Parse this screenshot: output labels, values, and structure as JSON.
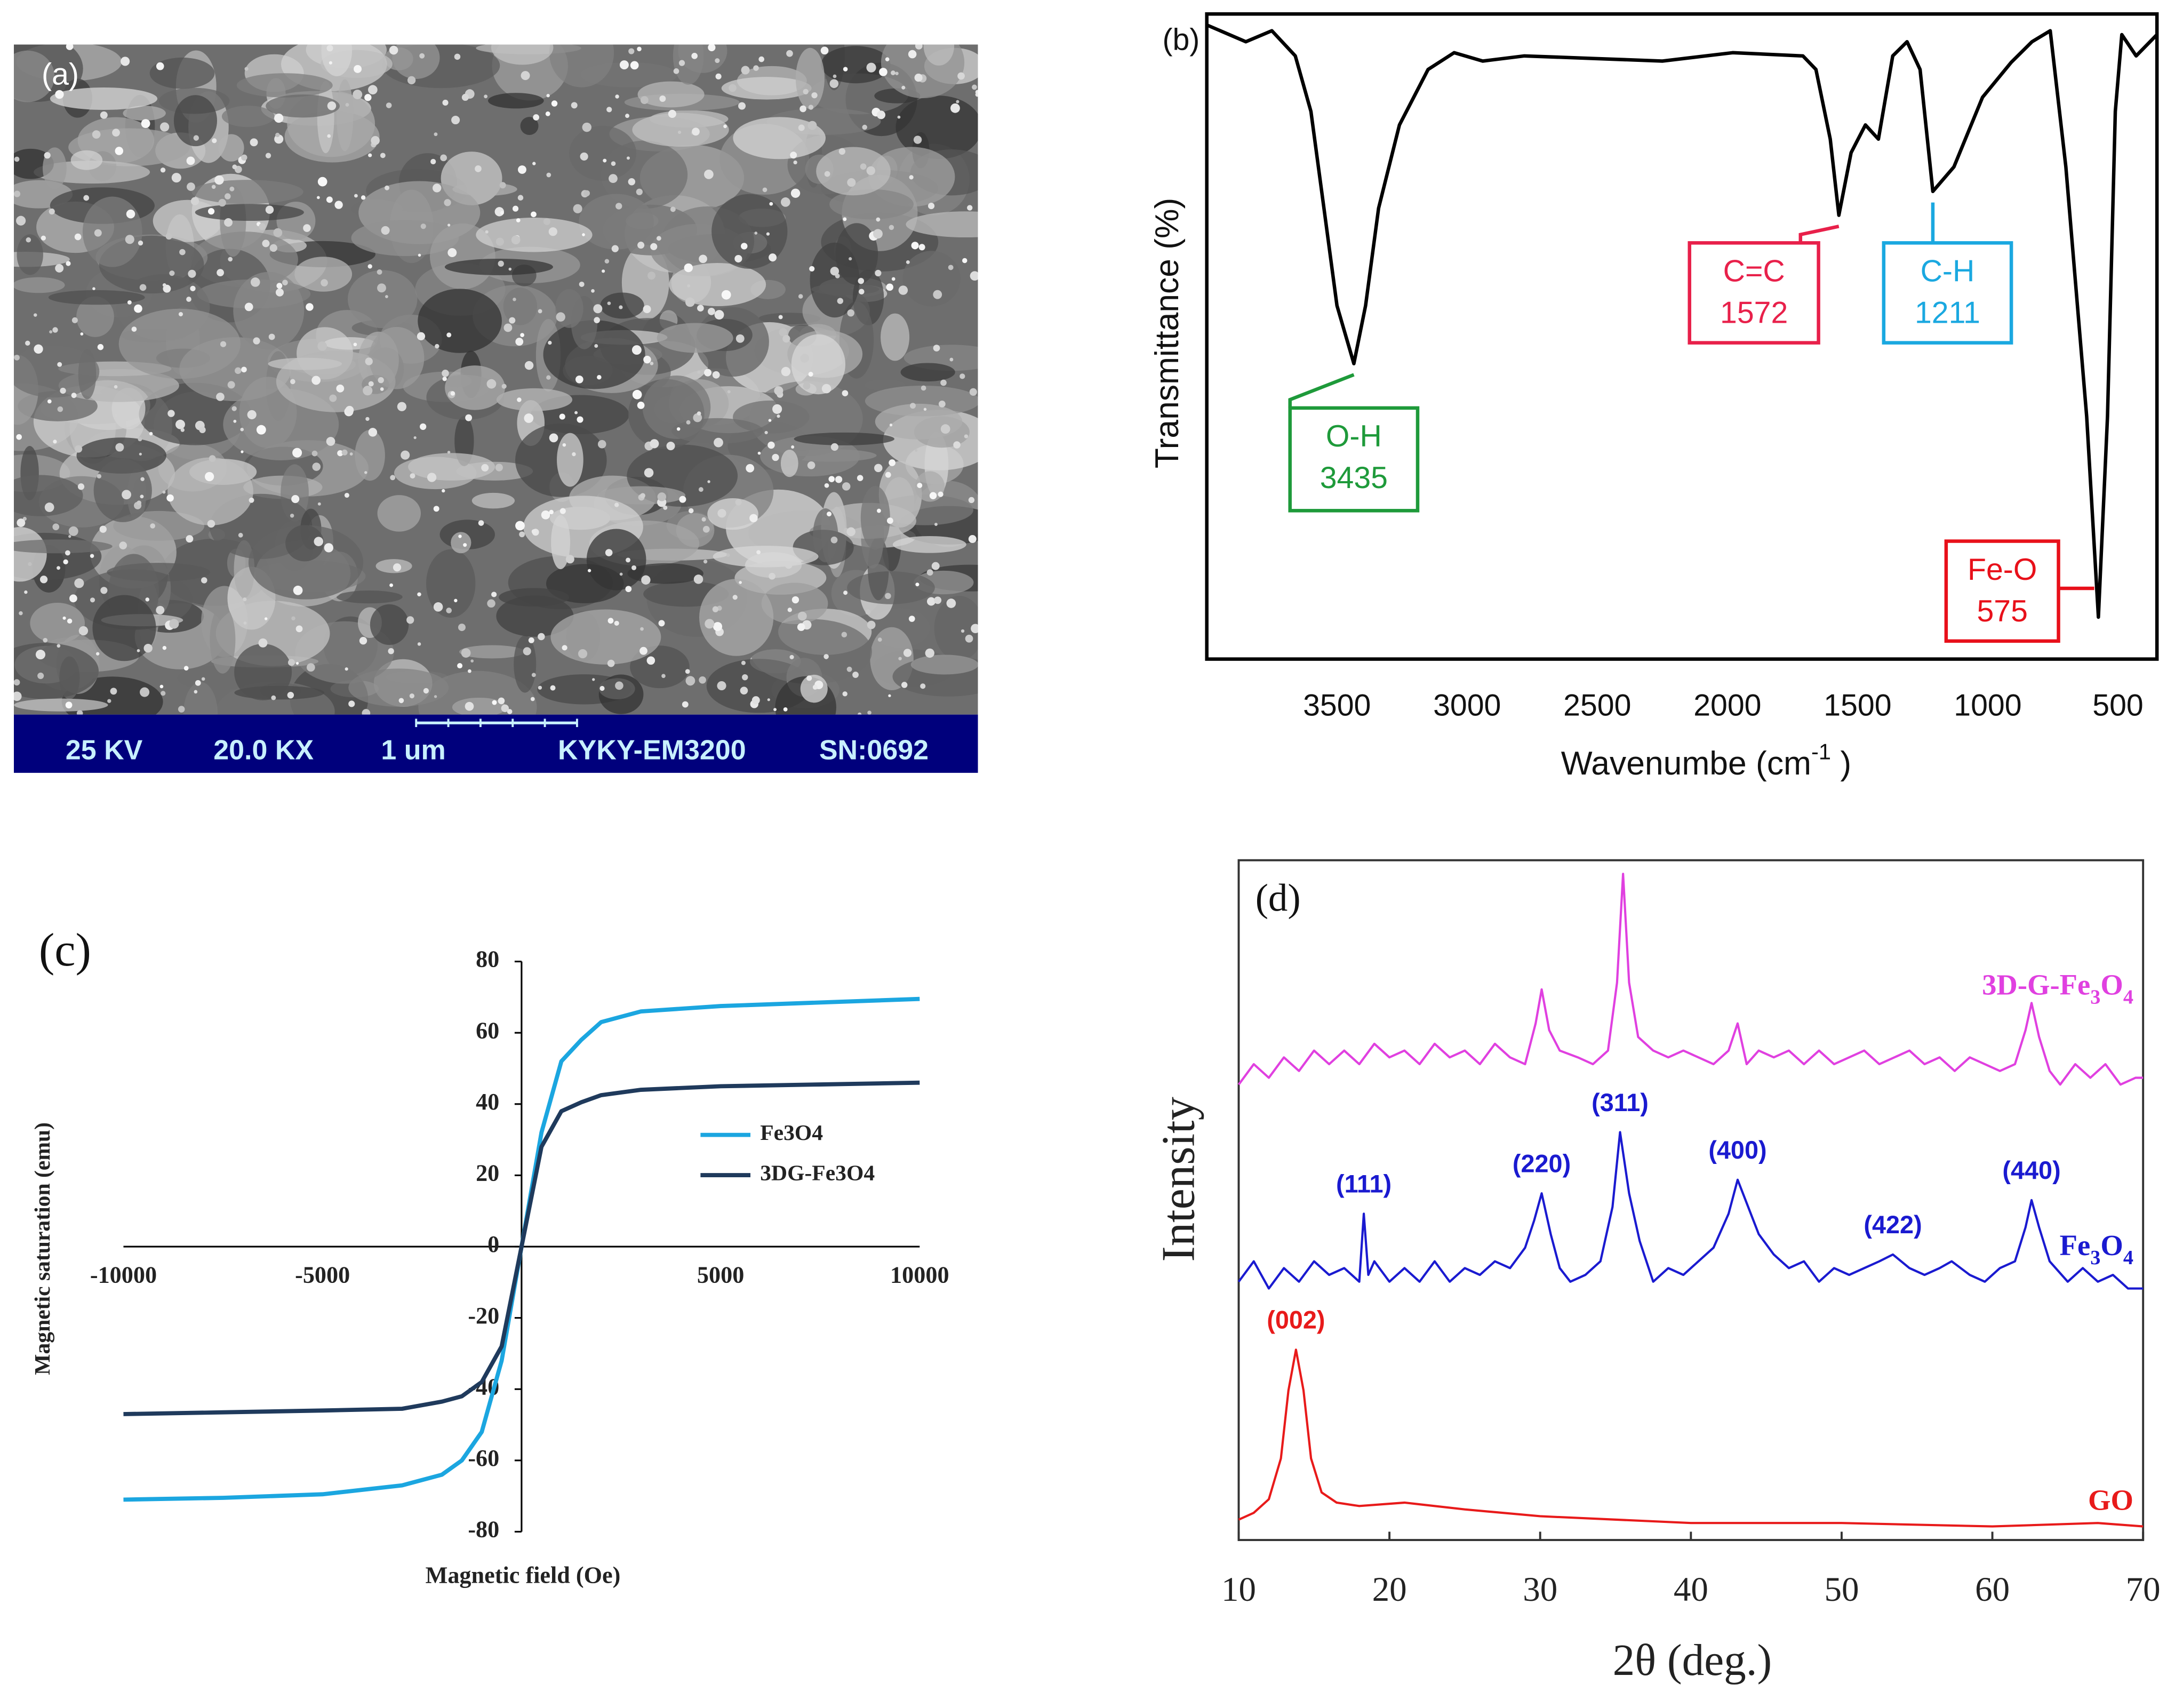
{
  "sem_image": {
    "label": "(a)",
    "info_bar": [
      "25 KV",
      "20.0 KX",
      "1 um",
      "KYKY-EM3200",
      "SN:0692"
    ]
  },
  "chart_data": [
    {
      "type": "line",
      "panel_label": "(b)",
      "xlabel": {
        "text": "Wavenumbe (cm",
        "superscript": "-1",
        "suffix": " )"
      },
      "ylabel": "Transmittance (%)",
      "x": [
        4000,
        3850,
        3750,
        3660,
        3600,
        3550,
        3500,
        3435,
        3390,
        3340,
        3260,
        3150,
        3050,
        2940,
        2780,
        2510,
        2250,
        1980,
        1710,
        1660,
        1605,
        1572,
        1525,
        1470,
        1420,
        1365,
        1310,
        1260,
        1211,
        1130,
        1020,
        910,
        830,
        760,
        700,
        620,
        575,
        540,
        510,
        485,
        430,
        350
      ],
      "series": [
        {
          "color": "#000000",
          "values": [
            98.3,
            95.7,
            97.4,
            93.5,
            84.9,
            69.9,
            54.8,
            45.8,
            54.8,
            69.9,
            82.8,
            91.4,
            94.0,
            92.7,
            93.5,
            93.1,
            92.7,
            94.0,
            93.5,
            91.4,
            80.6,
            68.8,
            78.5,
            82.8,
            80.6,
            93.5,
            95.7,
            91.4,
            72.5,
            76.3,
            87.1,
            92.5,
            95.7,
            97.4,
            76.3,
            37.6,
            6.5,
            37.6,
            84.9,
            96.8,
            93.5,
            96.8
          ]
        }
      ],
      "xlim": [
        4000,
        350
      ],
      "xticks": [
        3500,
        3000,
        2500,
        2000,
        1500,
        1000,
        500
      ],
      "ylim": [
        0,
        100
      ],
      "annotations": [
        {
          "label": "O-H",
          "x": 3435,
          "color": "#1e9a3a"
        },
        {
          "label": "C=C",
          "x": 1572,
          "color": "#e8204a"
        },
        {
          "label": "C-H",
          "x": 1211,
          "color": "#1aa8e0"
        },
        {
          "label": "Fe-O",
          "x": 575,
          "color": "#e8101a"
        }
      ]
    },
    {
      "type": "line",
      "panel_label": "(c)",
      "xlabel": "Magnetic field (Oe)",
      "ylabel": "Magnetic saturation (emu)",
      "x": [
        -10000,
        -7500,
        -5000,
        -3000,
        -2000,
        -1500,
        -1000,
        -500,
        0,
        500,
        1000,
        1500,
        2000,
        3000,
        5000,
        7500,
        10000
      ],
      "series": [
        {
          "name": "Fe3O4",
          "color": "#1ba6e0",
          "values": [
            -71,
            -70.5,
            -69.5,
            -67,
            -64,
            -60,
            -52,
            -32,
            0,
            32,
            52,
            58,
            63,
            66,
            67.5,
            68.5,
            69.5
          ]
        },
        {
          "name": "3DG-Fe3O4",
          "color": "#1f3a5c",
          "values": [
            -47,
            -46.5,
            -46,
            -45.5,
            -43.5,
            -42,
            -38,
            -28,
            0,
            28,
            38,
            40.5,
            42.5,
            44,
            45,
            45.5,
            46
          ]
        }
      ],
      "xlim": [
        -10000,
        10000
      ],
      "xticks": [
        -10000,
        -5000,
        5000,
        10000
      ],
      "ylim": [
        -80,
        80
      ],
      "yticks": [
        80,
        60,
        40,
        20,
        0,
        -20,
        -40,
        -60,
        -80
      ],
      "legend": "right"
    },
    {
      "type": "line",
      "panel_label": "(d)",
      "xlabel": "2θ (deg.)",
      "ylabel": "Intensity",
      "series": [
        {
          "name": "3D-G-Fe3O4",
          "color": "#e040e0",
          "x": [
            10,
            11,
            12,
            13,
            14,
            15,
            16,
            17,
            18,
            19,
            20,
            21,
            22,
            23,
            24,
            25,
            26,
            27,
            28,
            29,
            29.7,
            30.1,
            30.6,
            31.3,
            32.5,
            33.5,
            34.5,
            35.1,
            35.5,
            35.9,
            36.5,
            37.5,
            38.5,
            39.5,
            40.5,
            41.5,
            42.5,
            43.1,
            43.7,
            44.5,
            45.5,
            46.5,
            47.5,
            48.5,
            49.5,
            50.5,
            51.5,
            52.5,
            53.5,
            54.5,
            55.5,
            56.5,
            57.5,
            58.5,
            59.5,
            60.5,
            61.5,
            62.2,
            62.6,
            63.1,
            63.8,
            64.5,
            65.5,
            66.5,
            67.5,
            68.5,
            69.5,
            70
          ],
          "values": [
            67,
            70,
            68,
            71,
            69,
            72,
            70,
            72,
            70,
            73,
            71,
            72,
            70,
            73,
            71,
            72,
            70,
            73,
            71,
            70,
            76,
            81,
            75,
            72,
            71,
            70,
            72,
            82,
            98,
            82,
            74,
            72,
            71,
            72,
            71,
            70,
            72,
            76,
            70,
            72,
            71,
            72,
            70,
            72,
            70,
            71,
            72,
            70,
            71,
            72,
            70,
            71,
            69,
            71,
            70,
            69,
            70,
            75,
            79,
            74,
            69,
            67,
            70,
            68,
            70,
            67,
            68,
            68
          ]
        },
        {
          "name": "Fe3O4",
          "color": "#1a1ad0",
          "x": [
            10,
            11,
            12,
            13,
            14,
            15,
            16,
            17,
            18,
            18.3,
            18.6,
            19,
            20,
            21,
            22,
            23,
            24,
            25,
            26,
            27,
            28,
            29,
            29.6,
            30.1,
            30.7,
            31.3,
            32,
            33,
            34,
            34.8,
            35.3,
            35.9,
            36.6,
            37.5,
            38.5,
            39.5,
            40.5,
            41.5,
            42.5,
            43.1,
            43.8,
            44.5,
            45.5,
            46.5,
            47.5,
            48.5,
            49.5,
            50.5,
            51.5,
            52.5,
            53.4,
            54.5,
            55.5,
            56.5,
            57.3,
            58.5,
            59.5,
            60.5,
            61.5,
            62.2,
            62.6,
            63.1,
            63.8,
            65,
            66,
            67,
            68,
            69,
            70
          ],
          "values": [
            38,
            41,
            37,
            40,
            38,
            41,
            39,
            40,
            38,
            48,
            39,
            41,
            38,
            40,
            38,
            41,
            38,
            40,
            39,
            41,
            40,
            43,
            47,
            51,
            45,
            40,
            38,
            39,
            41,
            49,
            60,
            51,
            44,
            38,
            40,
            39,
            41,
            43,
            48,
            53,
            49,
            45,
            42,
            40,
            41,
            38,
            40,
            39,
            40,
            41,
            42,
            40,
            39,
            40,
            41,
            39,
            38,
            40,
            41,
            46,
            50,
            46,
            41,
            38,
            40,
            38,
            39,
            37,
            37
          ],
          "peaks": [
            {
              "label": "(111)",
              "x": 18.3
            },
            {
              "label": "(220)",
              "x": 30.1
            },
            {
              "label": "(311)",
              "x": 35.3
            },
            {
              "label": "(400)",
              "x": 43.1
            },
            {
              "label": "(422)",
              "x": 53.4
            },
            {
              "label": "(440)",
              "x": 62.6
            }
          ]
        },
        {
          "name": "GO",
          "color": "#e81a1a",
          "x": [
            10,
            11,
            12,
            12.8,
            13.3,
            13.8,
            14.3,
            14.8,
            15.5,
            16.5,
            18,
            21,
            25,
            30,
            40,
            50,
            60,
            67,
            70
          ],
          "values": [
            3,
            4,
            6,
            12,
            22,
            28,
            22,
            12,
            7,
            5.5,
            5,
            5.5,
            4.5,
            3.5,
            2.5,
            2.5,
            2,
            2.5,
            2
          ],
          "peaks": [
            {
              "label": "(002)",
              "x": 13.8
            }
          ]
        }
      ],
      "xlim": [
        10,
        70
      ],
      "xticks": [
        10,
        20,
        30,
        40,
        50,
        60,
        70
      ],
      "ylim": [
        0,
        100
      ]
    }
  ]
}
